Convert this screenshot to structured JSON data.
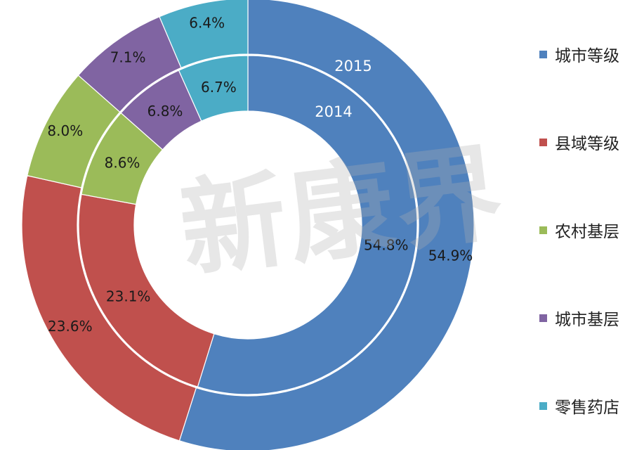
{
  "chart_data": {
    "type": "donut",
    "categories": [
      "城市等级",
      "县域等级",
      "农村基层",
      "城市基层",
      "零售药店"
    ],
    "colors": [
      "#4f81bd",
      "#c0504d",
      "#9bbb59",
      "#8064a2",
      "#4bacc6"
    ],
    "series": [
      {
        "name": "2015",
        "values": [
          54.9,
          23.6,
          8.0,
          7.1,
          6.4
        ],
        "labels": [
          "54.9%",
          "23.6%",
          "8.0%",
          "7.1%",
          "6.4%"
        ]
      },
      {
        "name": "2014",
        "values": [
          54.8,
          23.1,
          8.6,
          6.8,
          6.7
        ],
        "labels": [
          "54.8%",
          "23.1%",
          "8.6%",
          "6.8%",
          "6.7%"
        ]
      }
    ],
    "legend_position": "right"
  },
  "watermark": "新康界"
}
